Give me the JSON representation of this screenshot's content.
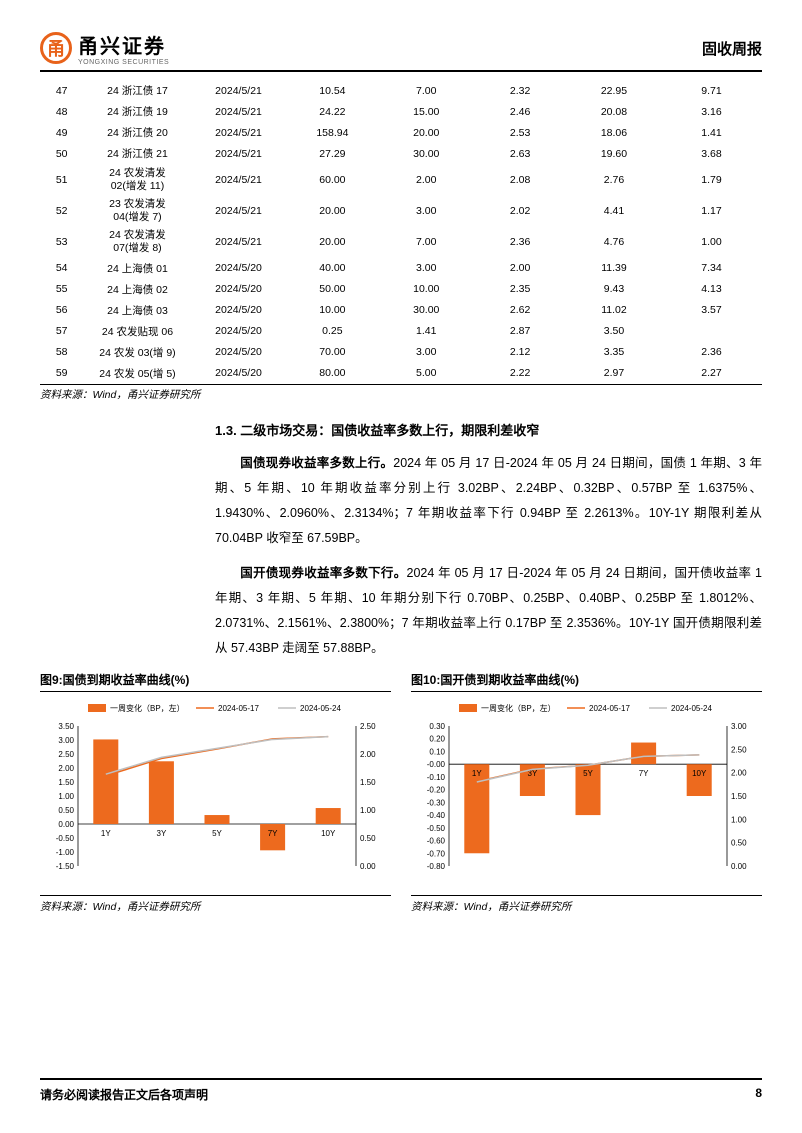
{
  "header": {
    "logo_char": "甬",
    "logo_cn": "甬兴证券",
    "logo_en": "YONGXING SECURITIES",
    "report_type": "固收周报"
  },
  "table": {
    "rows": [
      [
        "47",
        "24 浙江债 17",
        "2024/5/21",
        "10.54",
        "7.00",
        "2.32",
        "22.95",
        "9.71"
      ],
      [
        "48",
        "24 浙江债 19",
        "2024/5/21",
        "24.22",
        "15.00",
        "2.46",
        "20.08",
        "3.16"
      ],
      [
        "49",
        "24 浙江债 20",
        "2024/5/21",
        "158.94",
        "20.00",
        "2.53",
        "18.06",
        "1.41"
      ],
      [
        "50",
        "24 浙江债 21",
        "2024/5/21",
        "27.29",
        "30.00",
        "2.63",
        "19.60",
        "3.68"
      ],
      [
        "51",
        "24 农发清发\n02(增发 11)",
        "2024/5/21",
        "60.00",
        "2.00",
        "2.08",
        "2.76",
        "1.79"
      ],
      [
        "52",
        "23 农发清发\n04(增发 7)",
        "2024/5/21",
        "20.00",
        "3.00",
        "2.02",
        "4.41",
        "1.17"
      ],
      [
        "53",
        "24 农发清发\n07(增发 8)",
        "2024/5/21",
        "20.00",
        "7.00",
        "2.36",
        "4.76",
        "1.00"
      ],
      [
        "54",
        "24 上海债 01",
        "2024/5/20",
        "40.00",
        "3.00",
        "2.00",
        "11.39",
        "7.34"
      ],
      [
        "55",
        "24 上海债 02",
        "2024/5/20",
        "50.00",
        "10.00",
        "2.35",
        "9.43",
        "4.13"
      ],
      [
        "56",
        "24 上海债 03",
        "2024/5/20",
        "10.00",
        "30.00",
        "2.62",
        "11.02",
        "3.57"
      ],
      [
        "57",
        "24 农发贴现 06",
        "2024/5/20",
        "0.25",
        "1.41",
        "2.87",
        "3.50",
        ""
      ],
      [
        "58",
        "24 农发 03(增 9)",
        "2024/5/20",
        "70.00",
        "3.00",
        "2.12",
        "3.35",
        "2.36"
      ],
      [
        "59",
        "24 农发 05(增 5)",
        "2024/5/20",
        "80.00",
        "5.00",
        "2.22",
        "2.97",
        "2.27"
      ]
    ],
    "multiline_rows": [
      4,
      5,
      6
    ],
    "border_bottom_last": true
  },
  "source_text": "资料来源：Wind，甬兴证券研究所",
  "section_title": "1.3. 二级市场交易：国债收益率多数上行，期限利差收窄",
  "para1_lead": "国债现券收益率多数上行。",
  "para1_body": "2024 年 05 月 17 日-2024 年 05 月 24 日期间，国债 1 年期、3 年期、5 年期、10 年期收益率分别上行 3.02BP、2.24BP、0.32BP、0.57BP 至 1.6375%、1.9430%、2.0960%、2.3134%；7 年期收益率下行 0.94BP 至 2.2613%。10Y-1Y 期限利差从 70.04BP 收窄至 67.59BP。",
  "para2_lead": "国开债现券收益率多数下行。",
  "para2_body": "2024 年 05 月 17 日-2024 年 05 月 24 日期间，国开债收益率 1 年期、3 年期、5 年期、10 年期分别下行 0.70BP、0.25BP、0.40BP、0.25BP 至 1.8012%、2.0731%、2.1561%、2.3800%；7 年期收益率上行 0.17BP 至 2.3536%。10Y-1Y 国开债期限利差从 57.43BP 走阔至 57.88BP。",
  "chart9": {
    "title": "图9:国债到期收益率曲线(%)",
    "type": "bar+line",
    "legend": [
      "一周变化（BP，左）",
      "2024-05-17",
      "2024-05-24"
    ],
    "legend_colors": [
      "#ed6a1e",
      "#ed6a1e",
      "#bfbfbf"
    ],
    "categories": [
      "1Y",
      "3Y",
      "5Y",
      "7Y",
      "10Y"
    ],
    "bar_values": [
      3.02,
      2.24,
      0.32,
      -0.94,
      0.57
    ],
    "bar_color": "#ed6a1e",
    "line1_values": [
      1.61,
      1.92,
      2.09,
      2.27,
      2.31
    ],
    "line1_color": "#ed6a1e",
    "line2_values": [
      1.64,
      1.94,
      2.1,
      2.26,
      2.31
    ],
    "line2_color": "#bfbfbf",
    "left_ylim": [
      -1.5,
      3.5
    ],
    "left_step": 0.5,
    "right_ylim": [
      0.0,
      2.5
    ],
    "right_step": 0.5,
    "background": "#ffffff",
    "tick_fontsize": 8,
    "grid": false
  },
  "chart10": {
    "title": "图10:国开债到期收益率曲线(%)",
    "type": "bar+line",
    "legend": [
      "一周变化（BP，左）",
      "2024-05-17",
      "2024-05-24"
    ],
    "legend_colors": [
      "#ed6a1e",
      "#ed6a1e",
      "#bfbfbf"
    ],
    "categories": [
      "1Y",
      "3Y",
      "5Y",
      "7Y",
      "10Y"
    ],
    "bar_values": [
      -0.7,
      -0.25,
      -0.4,
      0.17,
      -0.25
    ],
    "bar_color": "#ed6a1e",
    "line1_values": [
      1.81,
      2.08,
      2.16,
      2.35,
      2.38
    ],
    "line1_color": "#ed6a1e",
    "line2_values": [
      1.8,
      2.07,
      2.16,
      2.35,
      2.38
    ],
    "line2_color": "#bfbfbf",
    "left_ylim": [
      -0.8,
      0.3
    ],
    "left_step": 0.1,
    "right_ylim": [
      0.0,
      3.0
    ],
    "right_step": 0.5,
    "background": "#ffffff",
    "tick_fontsize": 8,
    "grid": false
  },
  "footer": {
    "note": "请务必阅读报告正文后各项声明",
    "page": "8"
  }
}
